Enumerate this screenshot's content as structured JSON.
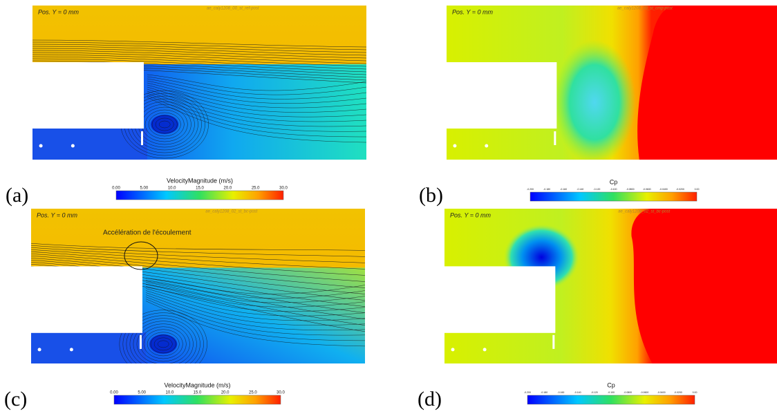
{
  "panels": [
    {
      "label": "(a)",
      "position": "Pos. Y = 0 mm",
      "file": "ae_caly1208_00_st_ref-post",
      "colorbar": {
        "title": "VelocityMagnitude (m/s)",
        "ticks": [
          "0.00",
          "5.00",
          "10.0",
          "15.0",
          "20.0",
          "25.0",
          "30.0"
        ]
      }
    },
    {
      "label": "(b)",
      "position": "Pos. Y = 0 mm",
      "file": "ae_caly1208_00_st_cmp-post",
      "colorbar": {
        "title": "Cp",
        "ticks": [
          "-0.200",
          "-0.180",
          "-0.160",
          "-0.140",
          "-0.120",
          "-0.100",
          "-0.0800",
          "-0.0600",
          "-0.0400",
          "-0.0200",
          "0.00"
        ]
      }
    },
    {
      "label": "(c)",
      "position": "Pos. Y = 0 mm",
      "file": "ae_caly1208_02_st_bc-post",
      "annotation": "Accélération de l'écoulement",
      "colorbar": {
        "title": "VelocityMagnitude (m/s)",
        "ticks": [
          "0.00",
          "5.00",
          "10.0",
          "15.0",
          "20.0",
          "25.0",
          "30.0"
        ]
      }
    },
    {
      "label": "(d)",
      "position": "Pos. Y = 0 mm",
      "file": "ae_caly1208_02_st_bc-post",
      "colorbar": {
        "title": "Cp",
        "ticks": [
          "-0.200",
          "-0.180",
          "-0.160",
          "-0.140",
          "-0.120",
          "-0.100",
          "-0.0800",
          "-0.0600",
          "-0.0400",
          "-0.0200",
          "0.00"
        ]
      }
    }
  ]
}
